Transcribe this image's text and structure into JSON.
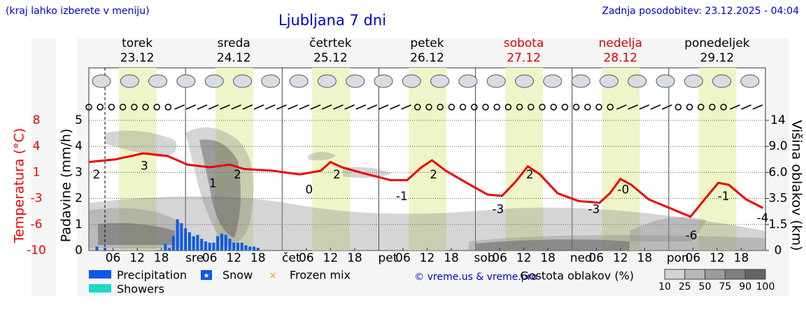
{
  "chart_data": {
    "type": "meteogram",
    "title": "Ljubljana 7 dni",
    "note": "(kraj lahko izberete v meniju)",
    "updated": "Zadnja posodobitev: 23.12.2025 - 04:04",
    "credit": "© vreme.us & vreme.pro",
    "days": [
      {
        "name": "torek",
        "date": "23.12",
        "color": "#000000"
      },
      {
        "name": "sreda",
        "date": "24.12",
        "color": "#000000"
      },
      {
        "name": "četrtek",
        "date": "25.12",
        "color": "#000000"
      },
      {
        "name": "petek",
        "date": "26.12",
        "color": "#000000"
      },
      {
        "name": "sobota",
        "date": "27.12",
        "color": "#dd0000"
      },
      {
        "name": "nedelja",
        "date": "28.12",
        "color": "#dd0000"
      },
      {
        "name": "ponedeljek",
        "date": "29.12",
        "color": "#000000"
      }
    ],
    "xlim": [
      0,
      168
    ],
    "xticks": [
      {
        "value": 6,
        "label": "06"
      },
      {
        "value": 12,
        "label": "12"
      },
      {
        "value": 18,
        "label": "18"
      },
      {
        "value": 24,
        "label": "sre"
      },
      {
        "value": 30,
        "label": "06"
      },
      {
        "value": 36,
        "label": "12"
      },
      {
        "value": 42,
        "label": "18"
      },
      {
        "value": 48,
        "label": "čet"
      },
      {
        "value": 54,
        "label": "06"
      },
      {
        "value": 60,
        "label": "12"
      },
      {
        "value": 66,
        "label": "18"
      },
      {
        "value": 72,
        "label": "pet"
      },
      {
        "value": 78,
        "label": "06"
      },
      {
        "value": 84,
        "label": "12"
      },
      {
        "value": 90,
        "label": "18"
      },
      {
        "value": 96,
        "label": "sob"
      },
      {
        "value": 102,
        "label": "06"
      },
      {
        "value": 108,
        "label": "12"
      },
      {
        "value": 114,
        "label": "18"
      },
      {
        "value": 120,
        "label": "ned"
      },
      {
        "value": 126,
        "label": "06"
      },
      {
        "value": 132,
        "label": "12"
      },
      {
        "value": 138,
        "label": "18"
      },
      {
        "value": 144,
        "label": "pon"
      },
      {
        "value": 150,
        "label": "06"
      },
      {
        "value": 156,
        "label": "12"
      },
      {
        "value": 162,
        "label": "18"
      }
    ],
    "ylabel": "Padavine (mm/h)",
    "ylim": [
      0,
      5
    ],
    "yticks": [
      0,
      1,
      2,
      3,
      4,
      5
    ],
    "grid": true,
    "temperature": {
      "label": "Temperatura (°C)",
      "color": "#ee0000",
      "ticks": [
        -10,
        -6,
        -3,
        1,
        4,
        8
      ],
      "x": [
        0,
        6.6,
        13.5,
        19.5,
        24.5,
        30,
        35,
        38.5,
        45.5,
        52.4,
        57.6,
        60,
        62.8,
        68,
        75,
        79,
        82.6,
        85.2,
        88.6,
        93.8,
        99,
        102.6,
        106,
        109,
        112,
        116.4,
        121.6,
        126.8,
        129.4,
        132,
        134.7,
        139,
        144.2,
        149.4,
        152.9,
        156.3,
        158.9,
        163.2,
        167.4
      ],
      "values": [
        2.2,
        2.5,
        3.2,
        2.9,
        1.9,
        1.6,
        1.9,
        1.4,
        1.2,
        0.7,
        1.2,
        2.2,
        1.6,
        0.9,
        -0.2,
        -0.2,
        1.6,
        2.4,
        1.2,
        -0.6,
        -2.4,
        -2.6,
        -0.4,
        1.7,
        0.7,
        -2.2,
        -3.3,
        -3.5,
        -2.2,
        0,
        -0.9,
        -3.1,
        -4.1,
        -5.1,
        -3.1,
        -0.6,
        -0.9,
        -3.1,
        -4.1
      ],
      "labels": {
        "x": [
          1.9,
          13.8,
          30.8,
          36.9,
          54.7,
          61.6,
          77.7,
          85.6,
          101.6,
          109.5,
          125.4,
          132.7,
          149.6,
          157.6,
          167.3
        ],
        "values": [
          2,
          3,
          1,
          2,
          0,
          2,
          -1,
          2,
          -3,
          2,
          -3,
          0,
          -6,
          -1,
          -4
        ],
        "value_labels": [
          "2",
          "3",
          "1",
          "2",
          "0",
          "2",
          "-1",
          "2",
          "-3",
          "2",
          "-3",
          "-0",
          "-6",
          "-1",
          "-4"
        ]
      }
    },
    "y2label": "Višina oblakov (km)",
    "y2ticks": [
      0,
      1.5,
      3.5,
      {
        "value": 6,
        "label": "6.0"
      },
      {
        "value": 9,
        "label": "9.0"
      },
      14
    ],
    "series": [
      {
        "name": "Precipitation",
        "color": "#0a5ae8",
        "x": [
          2,
          4,
          19,
          20,
          21,
          22,
          23,
          24,
          25,
          26,
          27,
          28,
          29,
          30,
          31,
          32,
          33,
          34,
          35,
          36,
          37,
          38,
          39,
          40,
          41,
          42
        ],
        "values": [
          0.15,
          0.1,
          0.25,
          0.1,
          0.55,
          1.2,
          1.05,
          0.85,
          0.7,
          0.55,
          0.6,
          0.45,
          0.35,
          0.3,
          0.3,
          0.55,
          0.65,
          0.6,
          0.45,
          0.3,
          0.3,
          0.3,
          0.2,
          0.15,
          0.15,
          0.1
        ]
      }
    ],
    "legend_items": [
      {
        "name": "Snow",
        "color": "#0a5ae8"
      },
      {
        "name": "Frozen mix",
        "color": "#f0a020"
      },
      {
        "name": "Showers",
        "color": "#20d8c8"
      }
    ],
    "density": {
      "label": "Gostota oblakov (%)",
      "ticks": [
        10,
        25,
        50,
        75,
        90,
        100
      ]
    }
  }
}
